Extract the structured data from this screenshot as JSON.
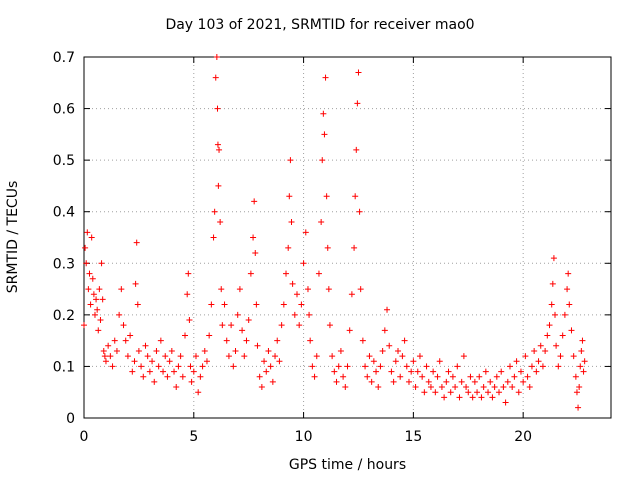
{
  "chart_data": {
    "type": "scatter",
    "title": "Day 103 of 2021, SRMTID for receiver mao0",
    "xlabel": "GPS time / hours",
    "ylabel": "SRMTID / TECUs",
    "xlim": [
      0,
      24
    ],
    "ylim": [
      0,
      0.7
    ],
    "xticks": [
      0,
      5,
      10,
      15,
      20
    ],
    "yticks": [
      0,
      0.1,
      0.2,
      0.3,
      0.4,
      0.5,
      0.6,
      0.7
    ],
    "grid": true,
    "marker": "+",
    "color": "#ff0000",
    "series": [
      {
        "name": "mao0",
        "points": [
          [
            0.0,
            0.18
          ],
          [
            0.05,
            0.33
          ],
          [
            0.1,
            0.3
          ],
          [
            0.15,
            0.36
          ],
          [
            0.2,
            0.25
          ],
          [
            0.25,
            0.28
          ],
          [
            0.3,
            0.22
          ],
          [
            0.35,
            0.35
          ],
          [
            0.4,
            0.27
          ],
          [
            0.45,
            0.24
          ],
          [
            0.5,
            0.2
          ],
          [
            0.55,
            0.23
          ],
          [
            0.6,
            0.21
          ],
          [
            0.65,
            0.17
          ],
          [
            0.7,
            0.25
          ],
          [
            0.75,
            0.19
          ],
          [
            0.8,
            0.3
          ],
          [
            0.85,
            0.23
          ],
          [
            0.9,
            0.13
          ],
          [
            0.95,
            0.12
          ],
          [
            1.0,
            0.11
          ],
          [
            1.1,
            0.14
          ],
          [
            1.2,
            0.12
          ],
          [
            1.3,
            0.1
          ],
          [
            1.4,
            0.15
          ],
          [
            1.5,
            0.13
          ],
          [
            1.6,
            0.2
          ],
          [
            1.7,
            0.25
          ],
          [
            1.8,
            0.18
          ],
          [
            1.9,
            0.15
          ],
          [
            2.0,
            0.12
          ],
          [
            2.1,
            0.16
          ],
          [
            2.2,
            0.09
          ],
          [
            2.3,
            0.11
          ],
          [
            2.35,
            0.26
          ],
          [
            2.4,
            0.34
          ],
          [
            2.45,
            0.22
          ],
          [
            2.5,
            0.13
          ],
          [
            2.6,
            0.1
          ],
          [
            2.7,
            0.08
          ],
          [
            2.8,
            0.14
          ],
          [
            2.9,
            0.12
          ],
          [
            3.0,
            0.09
          ],
          [
            3.1,
            0.11
          ],
          [
            3.2,
            0.07
          ],
          [
            3.3,
            0.13
          ],
          [
            3.4,
            0.1
          ],
          [
            3.5,
            0.15
          ],
          [
            3.6,
            0.09
          ],
          [
            3.7,
            0.12
          ],
          [
            3.8,
            0.08
          ],
          [
            3.9,
            0.11
          ],
          [
            4.0,
            0.13
          ],
          [
            4.1,
            0.09
          ],
          [
            4.2,
            0.06
          ],
          [
            4.3,
            0.1
          ],
          [
            4.4,
            0.12
          ],
          [
            4.5,
            0.08
          ],
          [
            4.6,
            0.16
          ],
          [
            4.7,
            0.24
          ],
          [
            4.75,
            0.28
          ],
          [
            4.8,
            0.19
          ],
          [
            4.85,
            0.1
          ],
          [
            4.9,
            0.07
          ],
          [
            5.0,
            0.09
          ],
          [
            5.1,
            0.12
          ],
          [
            5.2,
            0.05
          ],
          [
            5.3,
            0.08
          ],
          [
            5.4,
            0.1
          ],
          [
            5.5,
            0.13
          ],
          [
            5.6,
            0.11
          ],
          [
            5.7,
            0.16
          ],
          [
            5.8,
            0.22
          ],
          [
            5.9,
            0.35
          ],
          [
            5.95,
            0.4
          ],
          [
            6.0,
            0.66
          ],
          [
            6.05,
            0.7
          ],
          [
            6.08,
            0.6
          ],
          [
            6.1,
            0.53
          ],
          [
            6.12,
            0.45
          ],
          [
            6.15,
            0.52
          ],
          [
            6.2,
            0.38
          ],
          [
            6.25,
            0.25
          ],
          [
            6.3,
            0.18
          ],
          [
            6.4,
            0.22
          ],
          [
            6.5,
            0.15
          ],
          [
            6.6,
            0.12
          ],
          [
            6.7,
            0.18
          ],
          [
            6.8,
            0.1
          ],
          [
            6.9,
            0.13
          ],
          [
            7.0,
            0.2
          ],
          [
            7.1,
            0.25
          ],
          [
            7.2,
            0.17
          ],
          [
            7.3,
            0.12
          ],
          [
            7.4,
            0.15
          ],
          [
            7.5,
            0.19
          ],
          [
            7.6,
            0.28
          ],
          [
            7.7,
            0.35
          ],
          [
            7.75,
            0.42
          ],
          [
            7.8,
            0.32
          ],
          [
            7.85,
            0.22
          ],
          [
            7.9,
            0.14
          ],
          [
            8.0,
            0.08
          ],
          [
            8.1,
            0.06
          ],
          [
            8.2,
            0.11
          ],
          [
            8.3,
            0.09
          ],
          [
            8.4,
            0.13
          ],
          [
            8.5,
            0.1
          ],
          [
            8.6,
            0.07
          ],
          [
            8.7,
            0.12
          ],
          [
            8.8,
            0.15
          ],
          [
            8.9,
            0.11
          ],
          [
            9.0,
            0.18
          ],
          [
            9.1,
            0.22
          ],
          [
            9.2,
            0.28
          ],
          [
            9.3,
            0.33
          ],
          [
            9.35,
            0.43
          ],
          [
            9.4,
            0.5
          ],
          [
            9.45,
            0.38
          ],
          [
            9.5,
            0.26
          ],
          [
            9.6,
            0.2
          ],
          [
            9.7,
            0.24
          ],
          [
            9.8,
            0.18
          ],
          [
            9.9,
            0.22
          ],
          [
            10.0,
            0.3
          ],
          [
            10.1,
            0.36
          ],
          [
            10.2,
            0.25
          ],
          [
            10.25,
            0.2
          ],
          [
            10.3,
            0.15
          ],
          [
            10.4,
            0.1
          ],
          [
            10.5,
            0.08
          ],
          [
            10.6,
            0.12
          ],
          [
            10.7,
            0.28
          ],
          [
            10.8,
            0.38
          ],
          [
            10.85,
            0.5
          ],
          [
            10.9,
            0.59
          ],
          [
            10.95,
            0.55
          ],
          [
            11.0,
            0.66
          ],
          [
            11.05,
            0.43
          ],
          [
            11.1,
            0.33
          ],
          [
            11.15,
            0.25
          ],
          [
            11.2,
            0.18
          ],
          [
            11.3,
            0.12
          ],
          [
            11.4,
            0.09
          ],
          [
            11.5,
            0.07
          ],
          [
            11.6,
            0.1
          ],
          [
            11.7,
            0.13
          ],
          [
            11.8,
            0.08
          ],
          [
            11.9,
            0.06
          ],
          [
            12.0,
            0.1
          ],
          [
            12.1,
            0.17
          ],
          [
            12.2,
            0.24
          ],
          [
            12.3,
            0.33
          ],
          [
            12.35,
            0.43
          ],
          [
            12.4,
            0.52
          ],
          [
            12.45,
            0.61
          ],
          [
            12.5,
            0.67
          ],
          [
            12.55,
            0.4
          ],
          [
            12.6,
            0.25
          ],
          [
            12.7,
            0.15
          ],
          [
            12.8,
            0.1
          ],
          [
            12.9,
            0.08
          ],
          [
            13.0,
            0.12
          ],
          [
            13.1,
            0.07
          ],
          [
            13.2,
            0.11
          ],
          [
            13.3,
            0.09
          ],
          [
            13.4,
            0.06
          ],
          [
            13.5,
            0.1
          ],
          [
            13.6,
            0.13
          ],
          [
            13.7,
            0.17
          ],
          [
            13.8,
            0.21
          ],
          [
            13.9,
            0.14
          ],
          [
            14.0,
            0.09
          ],
          [
            14.1,
            0.07
          ],
          [
            14.2,
            0.11
          ],
          [
            14.3,
            0.13
          ],
          [
            14.4,
            0.08
          ],
          [
            14.5,
            0.12
          ],
          [
            14.6,
            0.15
          ],
          [
            14.7,
            0.1
          ],
          [
            14.8,
            0.07
          ],
          [
            14.9,
            0.09
          ],
          [
            15.0,
            0.11
          ],
          [
            15.1,
            0.06
          ],
          [
            15.2,
            0.09
          ],
          [
            15.3,
            0.12
          ],
          [
            15.4,
            0.08
          ],
          [
            15.5,
            0.05
          ],
          [
            15.6,
            0.1
          ],
          [
            15.7,
            0.07
          ],
          [
            15.8,
            0.06
          ],
          [
            15.9,
            0.09
          ],
          [
            16.0,
            0.05
          ],
          [
            16.1,
            0.08
          ],
          [
            16.2,
            0.11
          ],
          [
            16.3,
            0.06
          ],
          [
            16.4,
            0.04
          ],
          [
            16.5,
            0.07
          ],
          [
            16.6,
            0.09
          ],
          [
            16.7,
            0.05
          ],
          [
            16.8,
            0.08
          ],
          [
            16.9,
            0.06
          ],
          [
            17.0,
            0.1
          ],
          [
            17.1,
            0.04
          ],
          [
            17.2,
            0.07
          ],
          [
            17.3,
            0.12
          ],
          [
            17.4,
            0.06
          ],
          [
            17.5,
            0.05
          ],
          [
            17.6,
            0.08
          ],
          [
            17.7,
            0.04
          ],
          [
            17.8,
            0.07
          ],
          [
            17.9,
            0.05
          ],
          [
            18.0,
            0.08
          ],
          [
            18.1,
            0.04
          ],
          [
            18.2,
            0.06
          ],
          [
            18.3,
            0.09
          ],
          [
            18.4,
            0.05
          ],
          [
            18.5,
            0.07
          ],
          [
            18.6,
            0.04
          ],
          [
            18.7,
            0.06
          ],
          [
            18.8,
            0.08
          ],
          [
            18.9,
            0.05
          ],
          [
            19.0,
            0.09
          ],
          [
            19.1,
            0.06
          ],
          [
            19.2,
            0.03
          ],
          [
            19.3,
            0.07
          ],
          [
            19.4,
            0.1
          ],
          [
            19.5,
            0.06
          ],
          [
            19.6,
            0.08
          ],
          [
            19.7,
            0.11
          ],
          [
            19.8,
            0.05
          ],
          [
            19.9,
            0.09
          ],
          [
            20.0,
            0.07
          ],
          [
            20.1,
            0.12
          ],
          [
            20.2,
            0.08
          ],
          [
            20.3,
            0.06
          ],
          [
            20.4,
            0.1
          ],
          [
            20.5,
            0.13
          ],
          [
            20.6,
            0.09
          ],
          [
            20.7,
            0.11
          ],
          [
            20.8,
            0.14
          ],
          [
            20.9,
            0.1
          ],
          [
            21.0,
            0.13
          ],
          [
            21.1,
            0.16
          ],
          [
            21.2,
            0.18
          ],
          [
            21.3,
            0.22
          ],
          [
            21.35,
            0.26
          ],
          [
            21.4,
            0.31
          ],
          [
            21.45,
            0.2
          ],
          [
            21.5,
            0.14
          ],
          [
            21.6,
            0.1
          ],
          [
            21.7,
            0.12
          ],
          [
            21.8,
            0.16
          ],
          [
            21.9,
            0.2
          ],
          [
            22.0,
            0.25
          ],
          [
            22.05,
            0.28
          ],
          [
            22.1,
            0.22
          ],
          [
            22.2,
            0.17
          ],
          [
            22.3,
            0.12
          ],
          [
            22.4,
            0.08
          ],
          [
            22.45,
            0.05
          ],
          [
            22.5,
            0.02
          ],
          [
            22.55,
            0.06
          ],
          [
            22.6,
            0.1
          ],
          [
            22.65,
            0.13
          ],
          [
            22.7,
            0.15
          ],
          [
            22.75,
            0.09
          ],
          [
            22.8,
            0.11
          ]
        ]
      }
    ]
  }
}
